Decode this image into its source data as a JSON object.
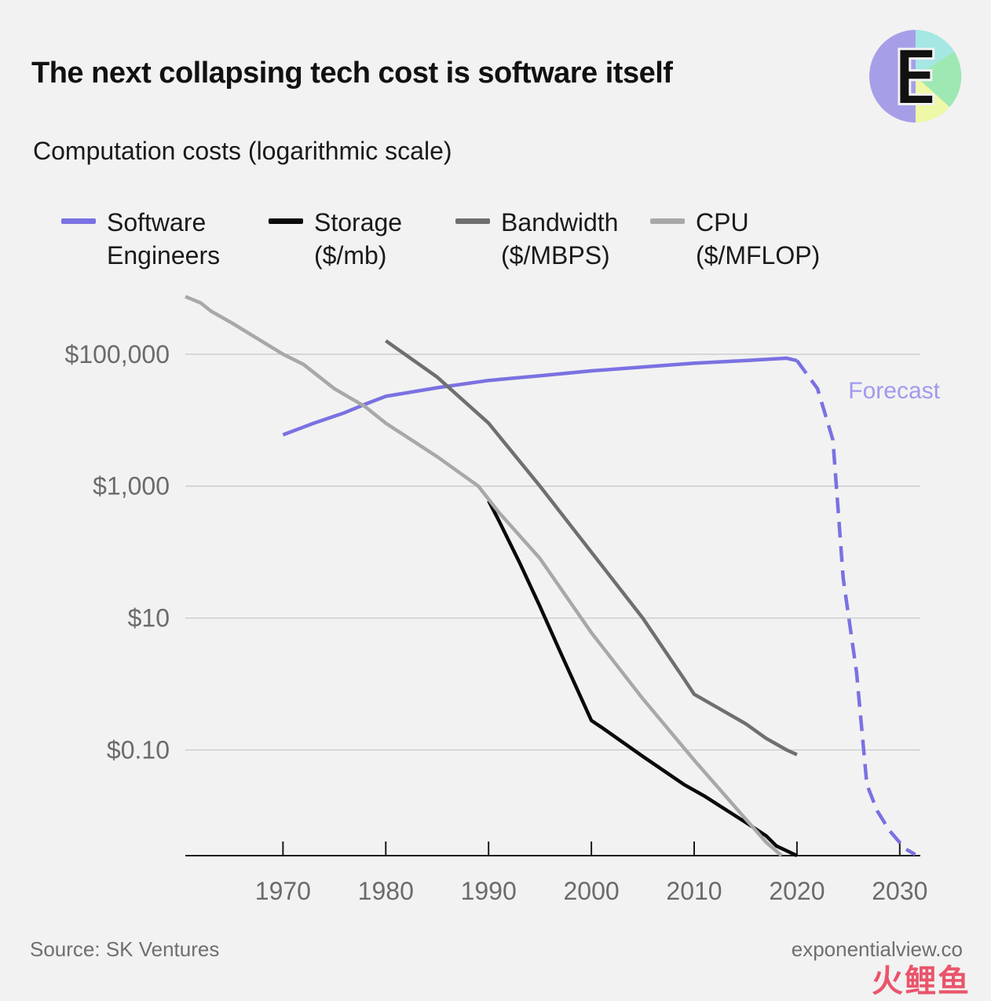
{
  "title": "The next collapsing tech cost is software itself",
  "subtitle": "Computation costs (logarithmic scale)",
  "logo": {
    "letter": "E",
    "colors": [
      "#a69fe8",
      "#a4e7e3",
      "#9ee8b4",
      "#eef8a6"
    ]
  },
  "source": "Source: SK Ventures",
  "site": "exponentialview.co",
  "watermark": "火鲤鱼",
  "chart_data": {
    "type": "line",
    "x_axis": {
      "ticks": [
        1970,
        1980,
        1990,
        2000,
        2010,
        2020,
        2030
      ],
      "range": [
        1960.5,
        2032
      ]
    },
    "y_axis": {
      "scale": "log",
      "range": [
        0.0025,
        800000
      ],
      "ticks": [
        {
          "value": 100000,
          "label": "$100,000"
        },
        {
          "value": 1000,
          "label": "$1,000"
        },
        {
          "value": 10,
          "label": "$10"
        },
        {
          "value": 0.1,
          "label": "$0.10"
        }
      ],
      "grid": true
    },
    "legend": {
      "position": "top"
    },
    "annotation": {
      "text": "Forecast",
      "x": 2024,
      "y": 28000,
      "color": "#a09aec"
    },
    "series": [
      {
        "name": "Software Engineers",
        "name_lines": [
          "Software",
          "Engineers"
        ],
        "color": "#7a71e2",
        "points": [
          [
            1970,
            6000
          ],
          [
            1973,
            9000
          ],
          [
            1976,
            13000
          ],
          [
            1978,
            17500
          ],
          [
            1980,
            23000
          ],
          [
            1985,
            31000
          ],
          [
            1990,
            40000
          ],
          [
            1995,
            47000
          ],
          [
            2000,
            56000
          ],
          [
            2005,
            64000
          ],
          [
            2010,
            73000
          ],
          [
            2015,
            80000
          ],
          [
            2019,
            87000
          ],
          [
            2020,
            80000
          ]
        ]
      },
      {
        "name": "Software Engineers Forecast",
        "color": "#7a71e2",
        "dashed": true,
        "points": [
          [
            2020,
            80000
          ],
          [
            2022,
            30000
          ],
          [
            2023.5,
            5000
          ],
          [
            2024.5,
            40
          ],
          [
            2025.8,
            1.5
          ],
          [
            2026.8,
            0.03
          ],
          [
            2027.8,
            0.012
          ],
          [
            2029,
            0.006
          ],
          [
            2030.5,
            0.0032
          ],
          [
            2031.5,
            0.0026
          ]
        ]
      },
      {
        "name": "Storage",
        "name_lines": [
          "Storage",
          "($/mb)"
        ],
        "color": "#0a0a0a",
        "points": [
          [
            1990,
            600
          ],
          [
            1991,
            300
          ],
          [
            1993,
            70
          ],
          [
            1995,
            15
          ],
          [
            1997,
            3
          ],
          [
            2000,
            0.28
          ],
          [
            2001,
            0.22
          ],
          [
            2005,
            0.08
          ],
          [
            2009,
            0.03
          ],
          [
            2011,
            0.02
          ],
          [
            2015,
            0.008
          ],
          [
            2017,
            0.005
          ],
          [
            2018,
            0.0035
          ],
          [
            2020,
            0.0025
          ]
        ]
      },
      {
        "name": "Bandwidth",
        "name_lines": [
          "Bandwidth",
          "($/MBPS)"
        ],
        "color": "#6f6f6f",
        "points": [
          [
            1980,
            160000
          ],
          [
            1985,
            45000
          ],
          [
            1990,
            9000
          ],
          [
            1995,
            1000
          ],
          [
            2000,
            100
          ],
          [
            2005,
            10
          ],
          [
            2009,
            1.2
          ],
          [
            2010,
            0.7
          ],
          [
            2015,
            0.25
          ],
          [
            2017,
            0.15
          ],
          [
            2019,
            0.1
          ],
          [
            2020,
            0.085
          ]
        ]
      },
      {
        "name": "CPU",
        "name_lines": [
          "CPU",
          "($/MFLOP)"
        ],
        "color": "#a8a8a8",
        "points": [
          [
            1960.5,
            750000
          ],
          [
            1962,
            600000
          ],
          [
            1963,
            450000
          ],
          [
            1965,
            300000
          ],
          [
            1970,
            100000
          ],
          [
            1972,
            70000
          ],
          [
            1975,
            30000
          ],
          [
            1978,
            16000
          ],
          [
            1980,
            9000
          ],
          [
            1985,
            2800
          ],
          [
            1989,
            1000
          ],
          [
            1991,
            400
          ],
          [
            1995,
            80
          ],
          [
            2000,
            6
          ],
          [
            2005,
            0.6
          ],
          [
            2010,
            0.07
          ],
          [
            2015,
            0.009
          ],
          [
            2017,
            0.004
          ],
          [
            2018.5,
            0.0025
          ]
        ]
      }
    ]
  }
}
